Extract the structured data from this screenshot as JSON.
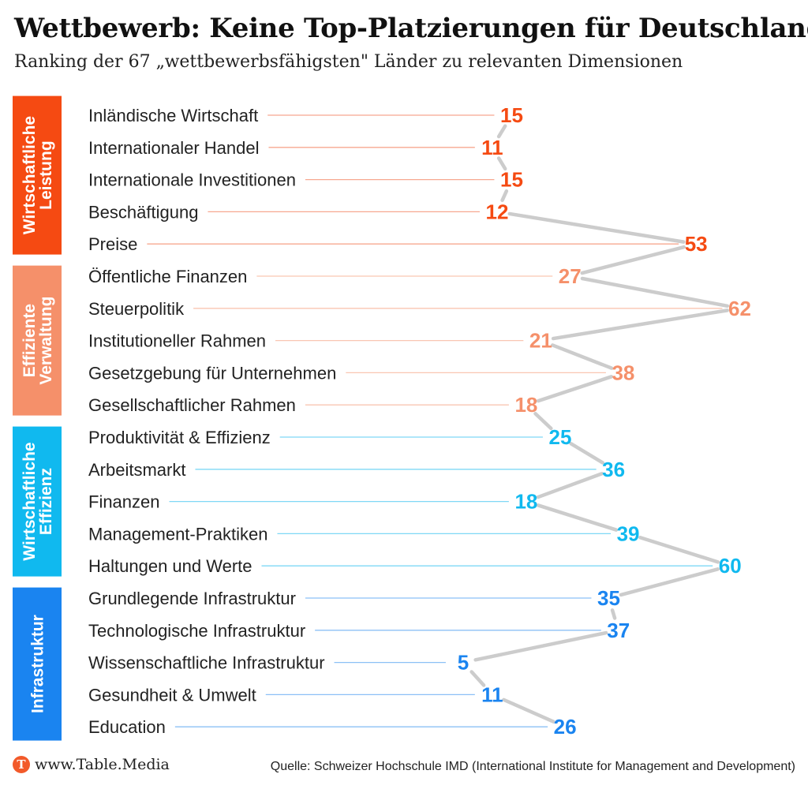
{
  "header": {
    "title": "Wettbewerb: Keine Top-Platzierungen für Deutschland",
    "subtitle": "Ranking der 67 „wettbewerbsfähigsten\" Länder zu relevanten Dimensionen"
  },
  "footer": {
    "brand": "www.Table.Media",
    "logo_letter": "T",
    "source": "Quelle: Schweizer Hochschule IMD (International Institute for Management and Development)"
  },
  "colors": {
    "connector": "#cccccc",
    "logo": "#f25a2a"
  },
  "chart_data": {
    "type": "line",
    "xlim": [
      1,
      67
    ],
    "groups": [
      {
        "name": "Wirtschaftliche Leistung",
        "color": "#f54a12",
        "line_color": "#f7a890",
        "items": [
          {
            "label": "Inländische Wirtschaft",
            "value": 15
          },
          {
            "label": "Internationaler Handel",
            "value": 11
          },
          {
            "label": "Internationale Investitionen",
            "value": 15
          },
          {
            "label": "Beschäftigung",
            "value": 12
          },
          {
            "label": "Preise",
            "value": 53
          }
        ]
      },
      {
        "name": "Effiziente Verwaltung",
        "color": "#f5906a",
        "line_color": "#f9c6b2",
        "items": [
          {
            "label": "Öffentliche Finanzen",
            "value": 27
          },
          {
            "label": "Steuerpolitik",
            "value": 62
          },
          {
            "label": "Institutioneller Rahmen",
            "value": 21
          },
          {
            "label": "Gesetzgebung für Unternehmen",
            "value": 38
          },
          {
            "label": "Gesellschaftlicher Rahmen",
            "value": 18
          }
        ]
      },
      {
        "name": "Wirtschaftliche Effizienz",
        "color": "#10b9ef",
        "line_color": "#7fd8f6",
        "items": [
          {
            "label": "Produktivität & Effizienz",
            "value": 25
          },
          {
            "label": "Arbeitsmarkt",
            "value": 36
          },
          {
            "label": "Finanzen",
            "value": 18
          },
          {
            "label": "Management-Praktiken",
            "value": 39
          },
          {
            "label": "Haltungen und Werte",
            "value": 60
          }
        ]
      },
      {
        "name": "Infrastruktur",
        "color": "#1a84f0",
        "line_color": "#8cc0f6",
        "items": [
          {
            "label": "Grundlegende Infrastruktur",
            "value": 35
          },
          {
            "label": "Technologische Infrastruktur",
            "value": 37
          },
          {
            "label": "Wissenschaftliche Infrastruktur",
            "value": 5
          },
          {
            "label": "Gesundheit & Umwelt",
            "value": 11
          },
          {
            "label": "Education",
            "value": 26
          }
        ]
      }
    ]
  }
}
